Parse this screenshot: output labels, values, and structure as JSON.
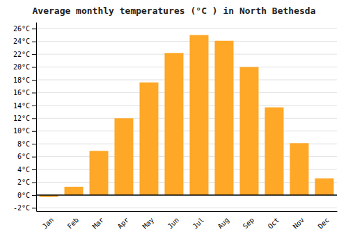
{
  "chart_data": {
    "type": "bar",
    "title": "Average monthly temperatures (°C ) in North Bethesda",
    "categories": [
      "Jan",
      "Feb",
      "Mar",
      "Apr",
      "May",
      "Jun",
      "Jul",
      "Aug",
      "Sep",
      "Oct",
      "Nov",
      "Dec"
    ],
    "values": [
      -0.3,
      1.3,
      6.9,
      12.0,
      17.6,
      22.2,
      25.0,
      24.1,
      20.0,
      13.7,
      8.1,
      2.6
    ],
    "color": "#FFA726",
    "ylim": [
      -2.5,
      27
    ],
    "yticks": [
      {
        "value": -2,
        "label": "-2°C"
      },
      {
        "value": 0,
        "label": "0°C"
      },
      {
        "value": 2,
        "label": "2°C"
      },
      {
        "value": 4,
        "label": "4°C"
      },
      {
        "value": 6,
        "label": "6°C"
      },
      {
        "value": 8,
        "label": "8°C"
      },
      {
        "value": 10,
        "label": "10°C"
      },
      {
        "value": 12,
        "label": "12°C"
      },
      {
        "value": 14,
        "label": "14°C"
      },
      {
        "value": 16,
        "label": "16°C"
      },
      {
        "value": 18,
        "label": "18°C"
      },
      {
        "value": 20,
        "label": "20°C"
      },
      {
        "value": 22,
        "label": "22°C"
      },
      {
        "value": 24,
        "label": "24°C"
      },
      {
        "value": 26,
        "label": "26°C"
      }
    ],
    "grid": true
  }
}
